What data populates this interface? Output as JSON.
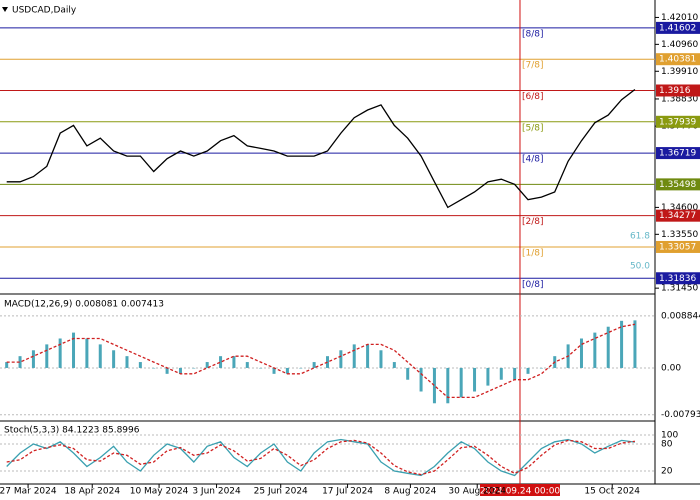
{
  "chart_data": [
    {
      "type": "line",
      "title": "USDCAD,Daily",
      "xlim": [
        -0.5,
        48.5
      ],
      "xticks": [
        {
          "value": 1.6,
          "label": "27 Mar 2024"
        },
        {
          "value": 6.4,
          "label": "18 Apr 2024"
        },
        {
          "value": 11.4,
          "label": "10 May 2024"
        },
        {
          "value": 15.7,
          "label": "3 Jun 2024"
        },
        {
          "value": 20.5,
          "label": "25 Jun 2024"
        },
        {
          "value": 25.5,
          "label": "17 Jul 2024"
        },
        {
          "value": 30.2,
          "label": "8 Aug 2024"
        },
        {
          "value": 35.2,
          "label": "30 Aug 2024"
        },
        {
          "value": 45.3,
          "label": "15 Oct 2024"
        }
      ],
      "marker": {
        "value": 38.4,
        "label": "2024.09.24 00:00",
        "color": "#d01010"
      },
      "ylim": [
        1.313,
        1.423
      ],
      "yticks": [
        {
          "value": 1.4201,
          "label": "1.42010"
        },
        {
          "value": 1.4096,
          "label": "1.40960"
        },
        {
          "value": 1.3991,
          "label": "1.39910"
        },
        {
          "value": 1.3883,
          "label": "1.38830"
        },
        {
          "value": 1.3777,
          "label": "1.37770"
        },
        {
          "value": 1.346,
          "label": "1.34600"
        },
        {
          "value": 1.3355,
          "label": "1.33550"
        },
        {
          "value": 1.3145,
          "label": "1.31450"
        }
      ],
      "series": [
        {
          "name": "USDCAD",
          "color": "#000000",
          "values": [
            1.356,
            1.356,
            1.358,
            1.362,
            1.375,
            1.378,
            1.37,
            1.373,
            1.368,
            1.366,
            1.366,
            1.36,
            1.365,
            1.368,
            1.366,
            1.368,
            1.372,
            1.374,
            1.37,
            1.369,
            1.368,
            1.366,
            1.366,
            1.366,
            1.368,
            1.375,
            1.381,
            1.384,
            1.386,
            1.378,
            1.373,
            1.366,
            1.356,
            1.346,
            1.349,
            1.352,
            1.356,
            1.357,
            1.355,
            1.349,
            1.35,
            1.352,
            1.364,
            1.372,
            1.379,
            1.382,
            1.388,
            1.392
          ]
        }
      ],
      "levels": [
        {
          "name": "[8/8]",
          "value": 1.41602,
          "color": "#1a1aa0"
        },
        {
          "name": "[7/8]",
          "value": 1.40381,
          "color": "#e0a030"
        },
        {
          "name": "[6/8]",
          "value": 1.3916,
          "color": "#c01818"
        },
        {
          "name": "[5/8]",
          "value": 1.37939,
          "color": "#8a9a10"
        },
        {
          "name": "[4/8]",
          "value": 1.36719,
          "color": "#1a1aa0"
        },
        {
          "value": 1.35498,
          "color": "#6f8a10"
        },
        {
          "name": "[2/8]",
          "value": 1.34277,
          "color": "#c01818"
        },
        {
          "name": "[1/8]",
          "value": 1.33057,
          "color": "#e0a030"
        },
        {
          "name": "[0/8]",
          "value": 1.31836,
          "color": "#1a1aa0"
        }
      ],
      "fib_labels": [
        "61.8",
        "50.0"
      ]
    },
    {
      "type": "bar",
      "title": "MACD(12,26,9) 0.008081 0.007413",
      "ylim": [
        -0.0085,
        0.0095
      ],
      "yticks": [
        0.008844,
        {
          "value": 0,
          "label": "0.00"
        },
        -0.007939
      ],
      "series": [
        {
          "name": "MACD",
          "color": "#4aa6b8",
          "values": [
            0.001,
            0.002,
            0.003,
            0.004,
            0.005,
            0.006,
            0.005,
            0.004,
            0.003,
            0.002,
            0.001,
            0,
            -0.001,
            -0.001,
            0,
            0.001,
            0.002,
            0.002,
            0.001,
            0,
            -0.001,
            -0.001,
            0,
            0.001,
            0.002,
            0.003,
            0.004,
            0.004,
            0.003,
            0.001,
            -0.002,
            -0.004,
            -0.006,
            -0.006,
            -0.005,
            -0.004,
            -0.003,
            -0.002,
            -0.002,
            -0.001,
            0,
            0.002,
            0.004,
            0.005,
            0.006,
            0.007,
            0.008,
            0.008081
          ]
        },
        {
          "name": "Signal",
          "color": "#d02020",
          "values": [
            0.001,
            0.001,
            0.002,
            0.003,
            0.004,
            0.005,
            0.005,
            0.005,
            0.004,
            0.003,
            0.002,
            0.001,
            0,
            -0.001,
            -0.001,
            0,
            0.001,
            0.002,
            0.002,
            0.001,
            0,
            -0.001,
            -0.001,
            0,
            0.001,
            0.002,
            0.003,
            0.004,
            0.004,
            0.003,
            0.001,
            -0.001,
            -0.003,
            -0.005,
            -0.005,
            -0.005,
            -0.004,
            -0.003,
            -0.002,
            -0.002,
            -0.001,
            0.001,
            0.002,
            0.004,
            0.005,
            0.006,
            0.007,
            0.007413
          ]
        }
      ]
    },
    {
      "type": "line",
      "title": "Stoch(5,3,3) 84.1223 85.8996",
      "ylim": [
        0,
        100
      ],
      "yticks": [
        100,
        80,
        20
      ],
      "series": [
        {
          "name": "Main",
          "color": "#3aa0b0",
          "values": [
            30,
            60,
            80,
            70,
            85,
            60,
            30,
            50,
            75,
            40,
            20,
            55,
            80,
            70,
            40,
            75,
            85,
            50,
            30,
            60,
            80,
            40,
            20,
            60,
            85,
            90,
            85,
            80,
            40,
            20,
            15,
            10,
            30,
            60,
            85,
            70,
            40,
            20,
            10,
            40,
            70,
            85,
            90,
            80,
            60,
            75,
            88,
            84.1223
          ]
        },
        {
          "name": "Signal",
          "color": "#d02020",
          "values": [
            40,
            45,
            65,
            72,
            78,
            70,
            45,
            42,
            60,
            55,
            35,
            40,
            65,
            72,
            55,
            60,
            78,
            65,
            42,
            48,
            70,
            55,
            32,
            45,
            70,
            85,
            88,
            82,
            60,
            32,
            18,
            12,
            20,
            45,
            72,
            75,
            55,
            30,
            15,
            28,
            55,
            78,
            88,
            85,
            70,
            70,
            82,
            85.8996
          ]
        }
      ]
    }
  ]
}
